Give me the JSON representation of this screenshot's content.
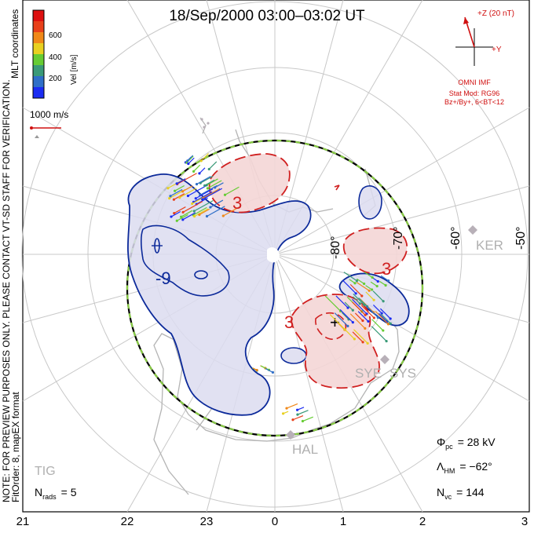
{
  "title": "18/Sep/2000 03:00–03:02 UT",
  "color_scale": {
    "label": "Vel [m/s]",
    "ticks": [
      "600",
      "400",
      "200"
    ],
    "colors": [
      "#1b2cf2",
      "#2f6fc8",
      "#3a9a78",
      "#66cc33",
      "#e8d020",
      "#f08818",
      "#e8401a",
      "#dd1010"
    ]
  },
  "coord_label": "MLT coordinates",
  "velocity_ref": "1000 m/s",
  "imf": {
    "z_label": "+Z (20 nT)",
    "y_label": "+Y",
    "source": "OMNI IMF"
  },
  "stat_model": {
    "line1": "Stat Mod: RG96",
    "line2": "Bz+/By+, 6<BT<12"
  },
  "preview_note": {
    "line1": "NOTE: FOR PREVIEW PURPOSES ONLY. PLEASE CONTACT VT-SD STAFF FOR VERIFICATION.",
    "line2": "FitOrder: 8, mapEX format"
  },
  "latitude_labels": [
    "-80°",
    "-70°",
    "-60°",
    "-50°"
  ],
  "contour_labels": [
    "-3",
    "-9",
    "3",
    "3",
    "3"
  ],
  "stations": [
    "KER",
    "SYE",
    "SYS",
    "HAL",
    "TIG"
  ],
  "stats": {
    "phi_pc": {
      "symbol": "Φ",
      "sub": "pc",
      "value": "= 28 kV"
    },
    "lambda_hm": {
      "symbol": "Λ",
      "sub": "HM",
      "value": "= −62°"
    },
    "n_vc": {
      "symbol": "N",
      "sub": "vc",
      "value": "= 144"
    },
    "n_rads": {
      "symbol": "N",
      "sub": "rads",
      "value": "= 5"
    }
  },
  "mlt_axis": [
    "21",
    "22",
    "23",
    "0",
    "1",
    "2",
    "3"
  ],
  "colors": {
    "neg_contour": "#0c2a9a",
    "neg_fill": "#dcdcf0",
    "pos_contour": "#d02020",
    "pos_fill": "#f4d6d6",
    "boundary_dash": "#88cc44",
    "grid": "#c8c8c8",
    "coast": "#b4b4b4"
  }
}
